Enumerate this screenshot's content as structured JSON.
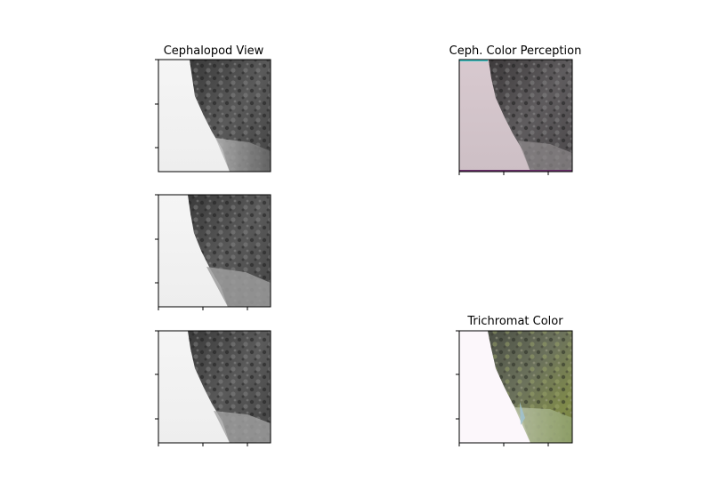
{
  "figure": {
    "panels": {
      "p0": {
        "title": "Cephalopod View",
        "content": "grayscale-rock-image"
      },
      "p1": {
        "title": "Ceph. Color Perception",
        "content": "pinkish-tinted-rock-image"
      },
      "p2": {
        "title": "",
        "content": "grayscale-rock-image"
      },
      "p3": {
        "title": "",
        "content": "grayscale-rock-image"
      },
      "p4": {
        "title": "Trichromat Color",
        "content": "full-color-rock-image"
      }
    },
    "colors": {
      "ceph_sky": "#d4c6cb",
      "trichromat_sky": "#fcf7fb",
      "gray_sky": "#f3f3f3",
      "rock_dark": "#2e2e2e",
      "moss_green": "#7f8a4a",
      "grass_green": "#8fa06a"
    }
  }
}
